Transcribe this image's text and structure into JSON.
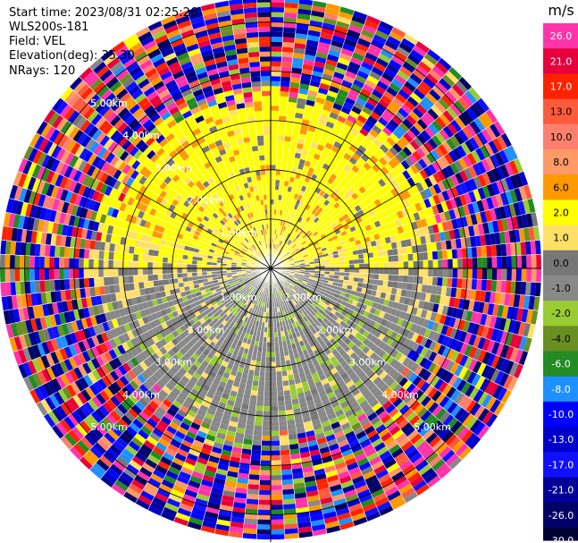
{
  "header": {
    "start_time": "Start time: 2023/08/31 02:25:26",
    "instrument": "WLS200s-181",
    "field": "Field: VEL",
    "elevation": "Elevation(deg): 35.30",
    "nrays": "NRays: 120"
  },
  "chart_data": {
    "type": "heatmap",
    "projection": "polar PPI",
    "field": "VEL",
    "elevation_deg": 35.3,
    "nrays": 120,
    "range_rings_km": [
      1.0,
      2.0,
      3.0,
      4.0,
      5.0
    ],
    "range_ring_labels": [
      "1.00km",
      "2.00km",
      "3.00km",
      "4.00km",
      "5.00km"
    ],
    "colorbar": {
      "unit": "m/s",
      "ticks": [
        26.0,
        21.0,
        17.0,
        13.0,
        10.0,
        8.0,
        6.0,
        2.0,
        1.0,
        0.0,
        -1.0,
        -2.0,
        -4.0,
        -6.0,
        -8.0,
        -10.0,
        -13.0,
        -17.0,
        -21.0,
        -26.0,
        -30.0
      ],
      "tick_labels": [
        "26.0",
        "21.0",
        "17.0",
        "13.0",
        "10.0",
        "8.0",
        "6.0",
        "2.0",
        "1.0",
        "0.0",
        "-1.0",
        "-2.0",
        "-4.0",
        "-6.0",
        "-8.0",
        "-10.0",
        "-13.0",
        "-17.0",
        "-21.0",
        "-26.0",
        "-30.0"
      ],
      "colors": [
        "#ff33aa",
        "#e8003c",
        "#ff2200",
        "#ff5a3c",
        "#ff7f6e",
        "#ff9966",
        "#ff9900",
        "#ffff00",
        "#ffe066",
        "#777777",
        "#888888",
        "#99cc33",
        "#6b8e23",
        "#228b22",
        "#1e90ff",
        "#0000ff",
        "#0000cc",
        "#1010ff",
        "#000099",
        "#000066",
        "#000033"
      ]
    },
    "summary": {
      "approaching_sector": "north half, 1.0 to 6.0 m/s",
      "receding_sector": "south half, -1.0 to -4.0 m/s",
      "beyond_range_km": 3.5,
      "beyond_range_note": "noise"
    }
  }
}
